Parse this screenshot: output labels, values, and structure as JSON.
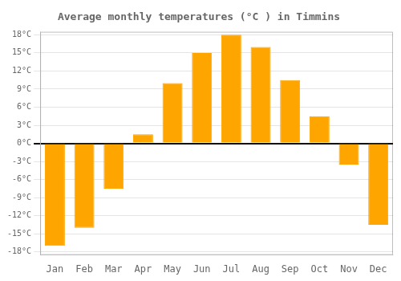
{
  "chart_data": {
    "type": "bar",
    "title": "Average monthly temperatures (°C ) in Timmins",
    "categories": [
      "Jan",
      "Feb",
      "Mar",
      "Apr",
      "May",
      "Jun",
      "Jul",
      "Aug",
      "Sep",
      "Oct",
      "Nov",
      "Dec"
    ],
    "values": [
      -17,
      -14,
      -7.5,
      1.5,
      10,
      15,
      18,
      16,
      10.5,
      4.5,
      -3.5,
      -13.5
    ],
    "color": "#FFA500",
    "ylim": [
      -18.5,
      18.5
    ],
    "yticks": [
      {
        "value": -18,
        "label": "-18°C"
      },
      {
        "value": -15,
        "label": "-15°C"
      },
      {
        "value": -12,
        "label": "-12°C"
      },
      {
        "value": -9,
        "label": "-9°C"
      },
      {
        "value": -6,
        "label": "-6°C"
      },
      {
        "value": -3,
        "label": "-3°C"
      },
      {
        "value": 0,
        "label": "0°C"
      },
      {
        "value": 3,
        "label": "3°C"
      },
      {
        "value": 6,
        "label": "6°C"
      },
      {
        "value": 9,
        "label": "9°C"
      },
      {
        "value": 12,
        "label": "12°C"
      },
      {
        "value": 15,
        "label": "15°C"
      },
      {
        "value": 18,
        "label": "18°C"
      }
    ],
    "grid": true
  }
}
